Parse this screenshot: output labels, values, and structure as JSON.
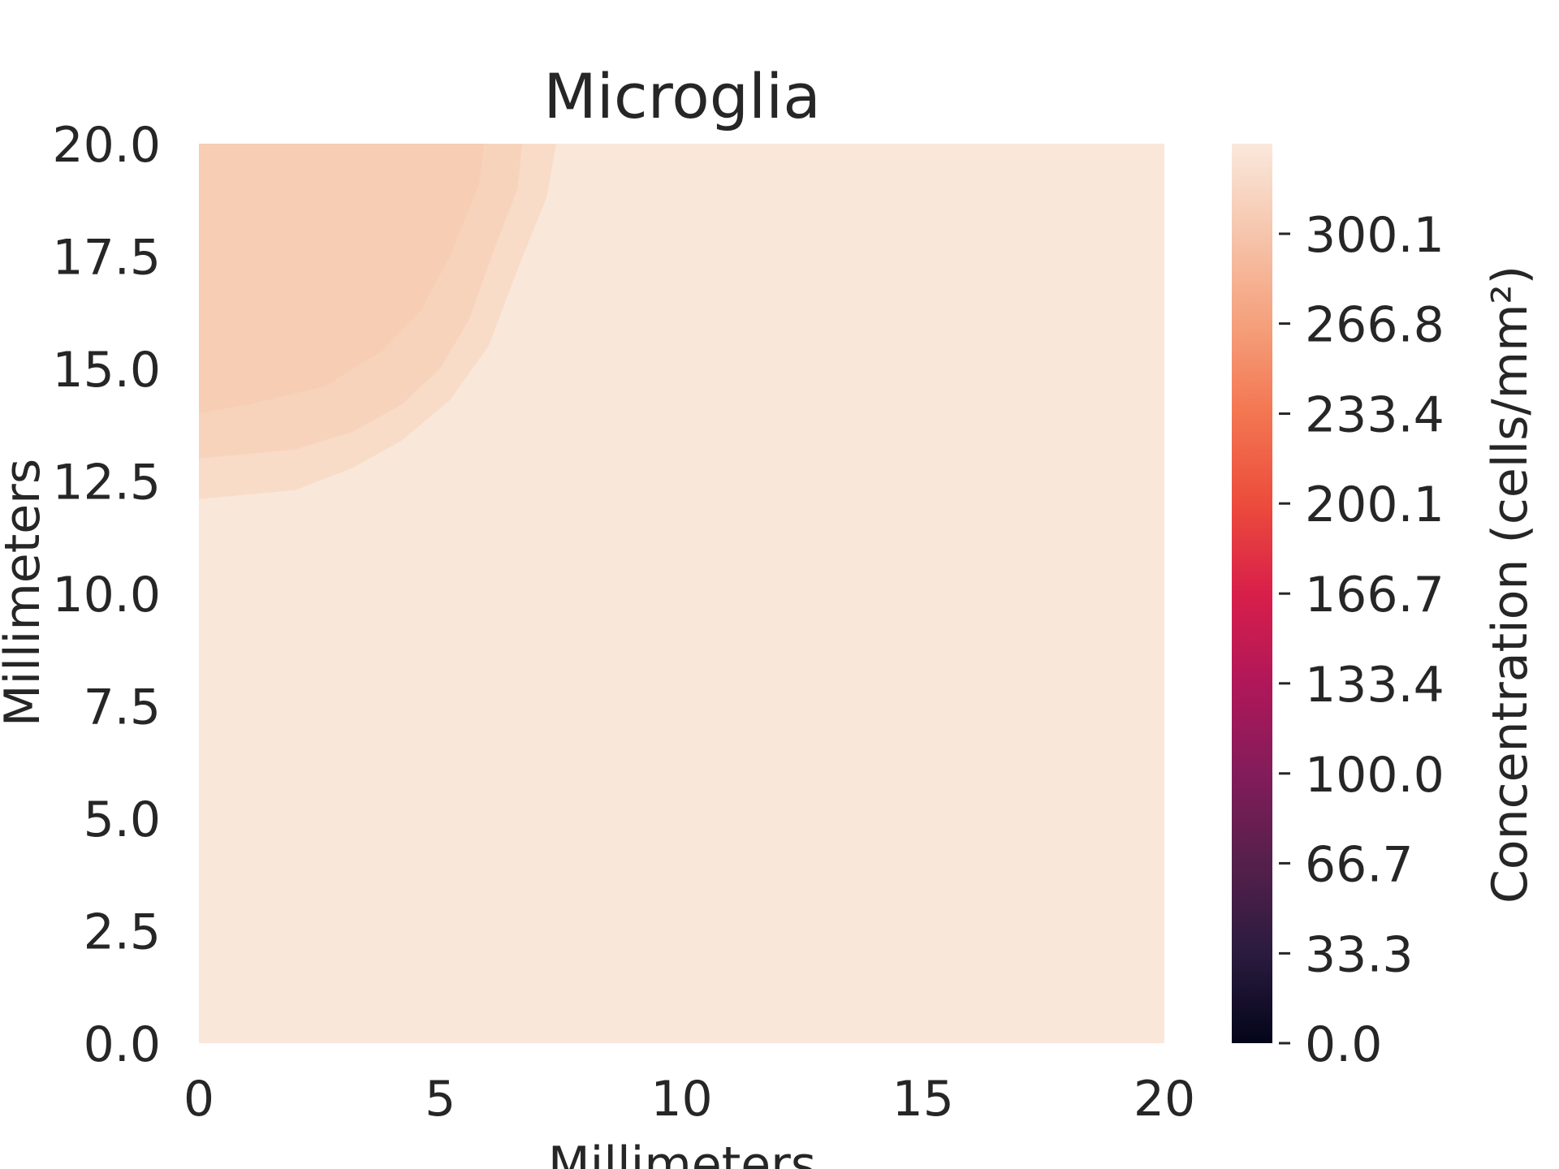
{
  "chart_data": {
    "type": "heatmap",
    "subtype": "filled-contour",
    "title": "Microglia",
    "xlabel": "Millimeters",
    "ylabel": "Millimeters",
    "xlim": [
      0,
      20
    ],
    "ylim": [
      0,
      20
    ],
    "x_ticks": [
      "0",
      "5",
      "10",
      "15",
      "20"
    ],
    "y_ticks": [
      "0.0",
      "2.5",
      "5.0",
      "7.5",
      "10.0",
      "12.5",
      "15.0",
      "17.5",
      "20.0"
    ],
    "grid": false,
    "colorbar": {
      "label": "Concentration (cells/mm²)",
      "range": [
        0,
        333.5
      ],
      "colormap": "rocket",
      "ticks": [
        "0.0",
        "33.3",
        "66.7",
        "100.0",
        "133.4",
        "166.7",
        "200.1",
        "233.4",
        "266.8",
        "300.1"
      ],
      "stops": [
        "#03051a",
        "#2b1b3f",
        "#55204b",
        "#831c5a",
        "#b01759",
        "#d81f4a",
        "#ec4c3c",
        "#f37651",
        "#f5a07c",
        "#f6c5ac",
        "#fae8dc"
      ]
    },
    "contour_levels": [
      {
        "min": 325.2,
        "max": 333.5,
        "color": "#f9e7d9"
      },
      {
        "min": 316.9,
        "max": 325.2,
        "color": "#f8dcc8"
      },
      {
        "min": 308.5,
        "max": 316.9,
        "color": "#f7d3bc"
      },
      {
        "min": 300.1,
        "max": 308.5,
        "color": "#f7cdb3"
      }
    ]
  }
}
